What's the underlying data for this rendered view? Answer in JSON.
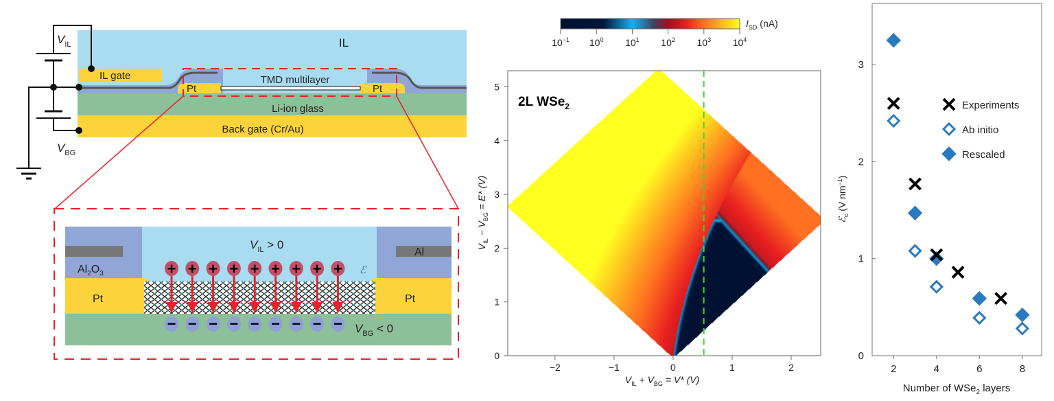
{
  "device_diagram": {
    "il": "IL",
    "il_gate": "IL gate",
    "tmd": "TMD multilayer",
    "pt": "Pt",
    "glass": "Li-ion glass",
    "back_gate": "Back gate (Cr/Au)",
    "v_il": {
      "main": "V",
      "sub": "IL"
    },
    "v_bg": {
      "main": "V",
      "sub": "BG"
    }
  },
  "zoom_diagram": {
    "v_il_cond": {
      "main": "V",
      "sub": "IL",
      "rest": " > 0"
    },
    "v_bg_cond": {
      "main": "V",
      "sub": "BG",
      "rest": " < 0"
    },
    "al2o3": {
      "a": "Al",
      "s1": "2",
      "b": "O",
      "s2": "3"
    },
    "al": "Al",
    "pt": "Pt",
    "field": "ℰ",
    "plus": "+",
    "minus": "−",
    "charge_pairs": 9
  },
  "chart_data": [
    {
      "type": "heatmap",
      "annotation": {
        "main": "2L WSe",
        "sub": "2"
      },
      "xlabel": {
        "a": "V",
        "s1": "IL",
        "b": " + V",
        "s2": "BG",
        "c": " = V* (V)"
      },
      "ylabel": {
        "a": "V",
        "s1": "IL",
        "b": " − V",
        "s2": "BG",
        "c": " = E* (V)"
      },
      "xlim": [
        -2.8,
        2.5
      ],
      "ylim": [
        0,
        5.3
      ],
      "xticks": [
        "−2",
        "−1",
        "0",
        "1",
        "2"
      ],
      "xtick_values": [
        -2,
        -1,
        0,
        1,
        2
      ],
      "yticks": [
        "0",
        "1",
        "2",
        "3",
        "4",
        "5"
      ],
      "ytick_values": [
        0,
        1,
        2,
        3,
        4,
        5
      ],
      "vline_x": 0.52,
      "vline_color": "#33dd33",
      "colorbar": {
        "label": {
          "main": "I",
          "sub": "SD",
          "rest": " (nA)"
        },
        "scale": "log",
        "range": [
          0.1,
          10000
        ],
        "ticks": [
          {
            "b": "10",
            "e": "−1"
          },
          {
            "b": "10",
            "e": "0"
          },
          {
            "b": "10",
            "e": "1"
          },
          {
            "b": "10",
            "e": "2"
          },
          {
            "b": "10",
            "e": "3"
          },
          {
            "b": "10",
            "e": "4"
          }
        ],
        "colors": [
          "#001030",
          "#00163c",
          "#10b4f0",
          "#404262",
          "#a01020",
          "#e82020",
          "#ff7020",
          "#ffff20"
        ]
      }
    },
    {
      "type": "scatter",
      "xlabel": {
        "a": "Number of WSe",
        "s": "2",
        "b": " layers"
      },
      "ylabel": {
        "a": "ℰ",
        "s": "c",
        "b": " (V nm",
        "e": "−1",
        "c": ")"
      },
      "xlim": [
        1,
        8.9
      ],
      "ylim": [
        0,
        3.63
      ],
      "xticks": [
        "2",
        "4",
        "6",
        "8"
      ],
      "xtick_values": [
        2,
        4,
        6,
        8
      ],
      "yticks": [
        "0",
        "1",
        "2",
        "3"
      ],
      "ytick_values": [
        0,
        1,
        2,
        3
      ],
      "legend_position": "top-right",
      "series": [
        {
          "name": "Experiments",
          "marker": "x",
          "color": "#000000",
          "x": [
            2,
            3,
            4,
            5,
            7
          ],
          "y": [
            2.6,
            1.77,
            1.04,
            0.86,
            0.59
          ]
        },
        {
          "name": "Ab initio",
          "marker": "open-diamond",
          "color": "#2a7ac0",
          "x": [
            2,
            3,
            4,
            6,
            8
          ],
          "y": [
            2.42,
            1.08,
            0.71,
            0.39,
            0.28
          ]
        },
        {
          "name": "Rescaled",
          "marker": "filled-diamond",
          "color": "#2a7ac0",
          "x": [
            2,
            3,
            4,
            6,
            8
          ],
          "y": [
            3.25,
            1.47,
            1.0,
            0.59,
            0.42
          ]
        }
      ]
    }
  ]
}
